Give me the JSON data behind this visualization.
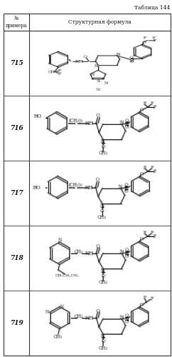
{
  "title": "Таблица 144",
  "col1_header": "№\nпримера",
  "col2_header": "Структурная формула",
  "row_numbers": [
    "715",
    "716",
    "717",
    "718",
    "719"
  ],
  "fig_width": 2.42,
  "fig_height": 5.0,
  "dpi": 100
}
